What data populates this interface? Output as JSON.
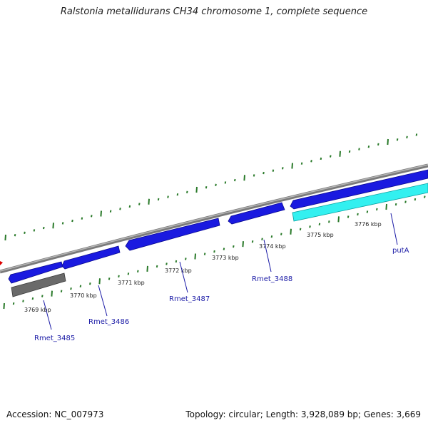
{
  "title": "Ralstonia metallidurans CH34 chromosome 1, complete sequence",
  "footer": {
    "accession": "Accession: NC_007973",
    "summary": "Topology: circular; Length: 3,928,089 bp; Genes: 3,669"
  },
  "colors": {
    "backbone": "#8a8a8a",
    "forward_gene": "#1a1ae0",
    "reverse_gene_pseudo": "#6a6a6a",
    "highlight_gene": "#33f0f0",
    "tick": "#2a7a2a",
    "label_line": "#1a1aa6",
    "marker": "#dd0000"
  },
  "kbp_labels": [
    "3769 kbp",
    "3770 kbp",
    "3771 kbp",
    "3772 kbp",
    "3773 kbp",
    "3774 kbp",
    "3775 kbp",
    "3776 kbp"
  ],
  "gene_labels": [
    "Rmet_3485",
    "Rmet_3486",
    "Rmet_3487",
    "Rmet_3488",
    "putA"
  ]
}
